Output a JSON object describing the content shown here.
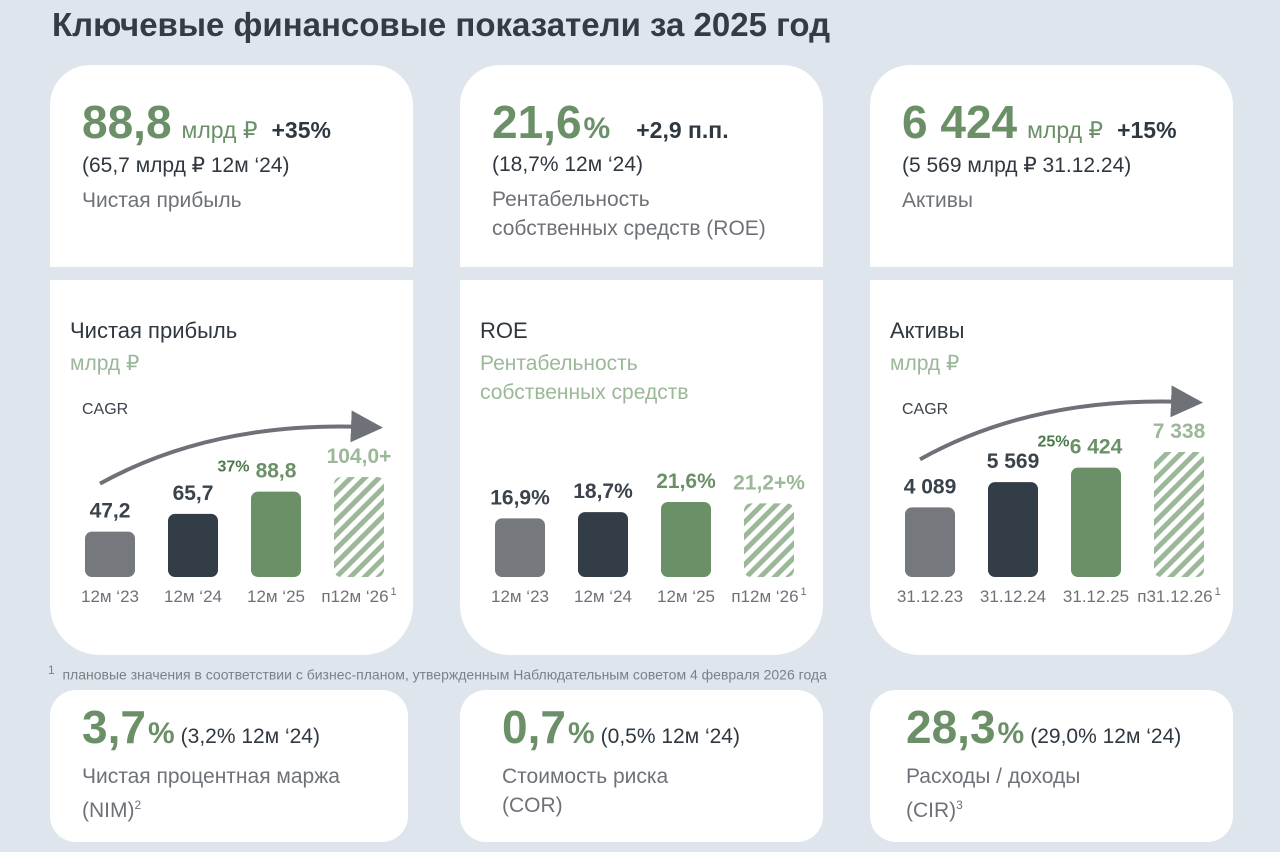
{
  "title": "Ключевые финансовые показатели за 2025 год",
  "top_cards": [
    {
      "value": "88,8",
      "unit": "млрд ₽",
      "change": "+35%",
      "previous": "(65,7 млрд ₽ 12м ‘24)",
      "label": [
        "Чистая прибыль"
      ]
    },
    {
      "value": "21,6",
      "unit": "%",
      "change": "+2,9 п.п.",
      "previous": "(18,7% 12м ‘24)",
      "label": [
        "Рентабельность",
        "собственных средств (ROE)"
      ]
    },
    {
      "value": "6 424",
      "unit": "млрд ₽",
      "change": "+15%",
      "previous": "(5 569 млрд ₽ 31.12.24)",
      "label": [
        "Активы"
      ]
    }
  ],
  "chart_data": [
    {
      "type": "bar",
      "title": "Чистая прибыль",
      "subtitle": [
        "млрд ₽"
      ],
      "cagr_label": "CAGR",
      "cagr": "37%",
      "categories": [
        "12м ‘23",
        "12м ‘24",
        "12м ‘25",
        "п12м ‘26"
      ],
      "category_note": "1",
      "values": [
        47.2,
        65.7,
        88.8,
        104.0
      ],
      "value_labels": [
        "47,2",
        "65,7",
        "88,8",
        "104,0+"
      ],
      "colors": [
        "#75787d",
        "#333d47",
        "#6b9068",
        "#9bb898"
      ],
      "patterns": [
        "solid",
        "solid",
        "solid",
        "hatched"
      ]
    },
    {
      "type": "bar",
      "title": "ROE",
      "subtitle": [
        "Рентабельность",
        "собственных средств"
      ],
      "categories": [
        "12м ‘23",
        "12м ‘24",
        "12м ‘25",
        "п12м ‘26"
      ],
      "category_note": "1",
      "values": [
        16.9,
        18.7,
        21.6,
        21.2
      ],
      "value_labels": [
        "16,9%",
        "18,7%",
        "21,6%",
        "21,2+%"
      ],
      "colors": [
        "#75787d",
        "#333d47",
        "#6b9068",
        "#9bb898"
      ],
      "patterns": [
        "solid",
        "solid",
        "solid",
        "hatched"
      ]
    },
    {
      "type": "bar",
      "title": "Активы",
      "subtitle": [
        "млрд ₽"
      ],
      "cagr_label": "CAGR",
      "cagr": "25%",
      "categories": [
        "31.12.23",
        "31.12.24",
        "31.12.25",
        "п31.12.26"
      ],
      "category_note": "1",
      "values": [
        4089,
        5569,
        6424,
        7338
      ],
      "value_labels": [
        "4 089",
        "5 569",
        "6 424",
        "7 338"
      ],
      "colors": [
        "#75787d",
        "#333d47",
        "#6b9068",
        "#9bb898"
      ],
      "patterns": [
        "solid",
        "solid",
        "solid",
        "hatched"
      ]
    }
  ],
  "footnote": {
    "mark": "1",
    "text": "плановые значения в соответствии с бизнес-планом, утвержденным Наблюдательным советом 4 февраля 2026 года"
  },
  "bottom_cards": [
    {
      "value": "3,7",
      "unit": "%",
      "previous": "(3,2% 12м ‘24)",
      "label": [
        "Чистая процентная маржа",
        "(NIM)"
      ],
      "note": "2"
    },
    {
      "value": "0,7",
      "unit": "%",
      "previous": "(0,5% 12м ‘24)",
      "label": [
        "Стоимость риска",
        "(COR)"
      ]
    },
    {
      "value": "28,3",
      "unit": "%",
      "previous": "(29,0% 12м ‘24)",
      "label": [
        "Расходы / доходы",
        "(CIR)"
      ],
      "note": "3"
    }
  ]
}
